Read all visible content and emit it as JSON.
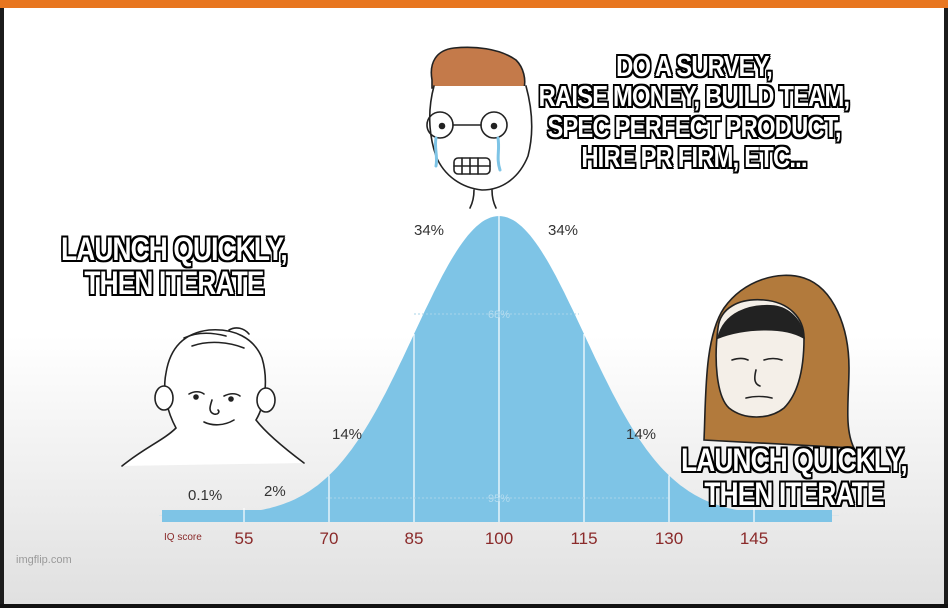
{
  "meme": {
    "top_caption": [
      "DO A SURVEY,",
      "RAISE MONEY, BUILD TEAM,",
      "SPEC PERFECT PRODUCT,",
      "HIRE PR FIRM, ETC..."
    ],
    "left_caption": [
      "LAUNCH QUICKLY,",
      "THEN ITERATE"
    ],
    "right_caption": [
      "LAUNCH QUICKLY,",
      "THEN ITERATE"
    ],
    "watermark": "imgflip.com"
  },
  "chart_data": {
    "type": "area",
    "x_label": "IQ score",
    "x_ticks": [
      "55",
      "70",
      "85",
      "100",
      "115",
      "130",
      "145"
    ],
    "percent_labels": [
      "0.1%",
      "2%",
      "14%",
      "34%",
      "34%",
      "14%"
    ],
    "band_labels": [
      "68%",
      "95%"
    ],
    "mean": 100,
    "sd": 15,
    "colors": {
      "curve": "#7ec4e6",
      "tick": "#8a2a2a",
      "label": "#333333"
    }
  }
}
